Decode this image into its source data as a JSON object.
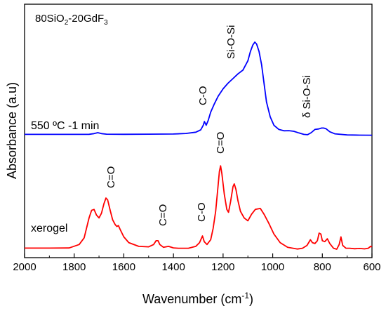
{
  "chart_data": {
    "type": "line",
    "title": "80SiO2-20GdF3",
    "title_parts": {
      "base": "80SiO",
      "sub1": "2",
      "mid": "-20GdF",
      "sub2": "3"
    },
    "xlabel": "Wavenumber (cm-1)",
    "xlabel_parts": {
      "base": "Wavenumber (cm",
      "sup": "-1",
      "end": ")"
    },
    "ylabel": "Absorbance (a.u)",
    "xlim": [
      2000,
      600
    ],
    "x_reversed": true,
    "x_ticks": [
      2000,
      1800,
      1600,
      1400,
      1200,
      1000,
      800,
      600
    ],
    "y_ticks_shown": false,
    "grid": false,
    "series": [
      {
        "name": "550 ºC -1 min",
        "color": "#0000ff",
        "points": [
          [
            2000,
            0.012
          ],
          [
            1900,
            0.012
          ],
          [
            1800,
            0.012
          ],
          [
            1740,
            0.013
          ],
          [
            1720,
            0.02
          ],
          [
            1705,
            0.03
          ],
          [
            1690,
            0.02
          ],
          [
            1670,
            0.014
          ],
          [
            1600,
            0.013
          ],
          [
            1500,
            0.014
          ],
          [
            1400,
            0.016
          ],
          [
            1350,
            0.022
          ],
          [
            1310,
            0.035
          ],
          [
            1290,
            0.06
          ],
          [
            1280,
            0.11
          ],
          [
            1275,
            0.15
          ],
          [
            1268,
            0.11
          ],
          [
            1260,
            0.16
          ],
          [
            1250,
            0.25
          ],
          [
            1235,
            0.34
          ],
          [
            1220,
            0.42
          ],
          [
            1200,
            0.5
          ],
          [
            1180,
            0.56
          ],
          [
            1160,
            0.61
          ],
          [
            1140,
            0.66
          ],
          [
            1120,
            0.7
          ],
          [
            1100,
            0.8
          ],
          [
            1090,
            0.9
          ],
          [
            1080,
            0.97
          ],
          [
            1072,
            1.0
          ],
          [
            1065,
            0.98
          ],
          [
            1055,
            0.9
          ],
          [
            1045,
            0.76
          ],
          [
            1035,
            0.56
          ],
          [
            1025,
            0.36
          ],
          [
            1010,
            0.2
          ],
          [
            995,
            0.11
          ],
          [
            975,
            0.065
          ],
          [
            955,
            0.05
          ],
          [
            935,
            0.052
          ],
          [
            915,
            0.045
          ],
          [
            895,
            0.028
          ],
          [
            875,
            0.012
          ],
          [
            860,
            0.008
          ],
          [
            845,
            0.03
          ],
          [
            830,
            0.065
          ],
          [
            815,
            0.07
          ],
          [
            803,
            0.08
          ],
          [
            795,
            0.08
          ],
          [
            785,
            0.072
          ],
          [
            770,
            0.04
          ],
          [
            750,
            0.018
          ],
          [
            700,
            0.006
          ],
          [
            650,
            0.004
          ],
          [
            600,
            0.003
          ]
        ]
      },
      {
        "name": "xerogel",
        "color": "#ff0000",
        "points": [
          [
            2000,
            0.012
          ],
          [
            1900,
            0.012
          ],
          [
            1820,
            0.013
          ],
          [
            1780,
            0.05
          ],
          [
            1760,
            0.12
          ],
          [
            1740,
            0.33
          ],
          [
            1730,
            0.41
          ],
          [
            1720,
            0.42
          ],
          [
            1710,
            0.36
          ],
          [
            1700,
            0.33
          ],
          [
            1690,
            0.38
          ],
          [
            1680,
            0.48
          ],
          [
            1672,
            0.54
          ],
          [
            1665,
            0.52
          ],
          [
            1655,
            0.41
          ],
          [
            1645,
            0.31
          ],
          [
            1635,
            0.26
          ],
          [
            1628,
            0.24
          ],
          [
            1622,
            0.25
          ],
          [
            1615,
            0.21
          ],
          [
            1600,
            0.13
          ],
          [
            1580,
            0.07
          ],
          [
            1540,
            0.03
          ],
          [
            1500,
            0.025
          ],
          [
            1480,
            0.05
          ],
          [
            1470,
            0.09
          ],
          [
            1462,
            0.09
          ],
          [
            1455,
            0.05
          ],
          [
            1440,
            0.02
          ],
          [
            1420,
            0.03
          ],
          [
            1400,
            0.014
          ],
          [
            1380,
            0.01
          ],
          [
            1340,
            0.01
          ],
          [
            1310,
            0.03
          ],
          [
            1295,
            0.07
          ],
          [
            1283,
            0.14
          ],
          [
            1276,
            0.08
          ],
          [
            1265,
            0.05
          ],
          [
            1250,
            0.1
          ],
          [
            1240,
            0.22
          ],
          [
            1230,
            0.4
          ],
          [
            1222,
            0.62
          ],
          [
            1215,
            0.82
          ],
          [
            1210,
            0.88
          ],
          [
            1205,
            0.8
          ],
          [
            1195,
            0.58
          ],
          [
            1185,
            0.42
          ],
          [
            1178,
            0.39
          ],
          [
            1170,
            0.5
          ],
          [
            1160,
            0.66
          ],
          [
            1155,
            0.69
          ],
          [
            1148,
            0.63
          ],
          [
            1140,
            0.51
          ],
          [
            1130,
            0.4
          ],
          [
            1115,
            0.33
          ],
          [
            1100,
            0.3
          ],
          [
            1085,
            0.37
          ],
          [
            1070,
            0.42
          ],
          [
            1050,
            0.43
          ],
          [
            1035,
            0.37
          ],
          [
            1015,
            0.27
          ],
          [
            995,
            0.16
          ],
          [
            970,
            0.07
          ],
          [
            940,
            0.02
          ],
          [
            900,
            0.002
          ],
          [
            880,
            0.01
          ],
          [
            862,
            0.04
          ],
          [
            848,
            0.1
          ],
          [
            840,
            0.07
          ],
          [
            830,
            0.06
          ],
          [
            820,
            0.09
          ],
          [
            813,
            0.17
          ],
          [
            806,
            0.16
          ],
          [
            800,
            0.09
          ],
          [
            790,
            0.08
          ],
          [
            780,
            0.11
          ],
          [
            770,
            0.06
          ],
          [
            755,
            0.01
          ],
          [
            742,
            0.0
          ],
          [
            732,
            0.05
          ],
          [
            725,
            0.13
          ],
          [
            718,
            0.04
          ],
          [
            705,
            0.01
          ],
          [
            690,
            0.01
          ],
          [
            670,
            0.005
          ],
          [
            650,
            0.008
          ],
          [
            630,
            0.004
          ],
          [
            615,
            0.01
          ],
          [
            605,
            0.03
          ],
          [
            600,
            0.025
          ]
        ]
      }
    ],
    "annotations": [
      {
        "text": "C-O",
        "series": 0
      },
      {
        "text": "Si-O-Si",
        "series": 0
      },
      {
        "text": "δ Si-O-Si",
        "series": 0
      },
      {
        "text": "C=O",
        "series": 1
      },
      {
        "text": "C=O",
        "series": 1
      },
      {
        "text": "C-O",
        "series": 1
      },
      {
        "text": "C=O",
        "series": 1
      }
    ]
  }
}
